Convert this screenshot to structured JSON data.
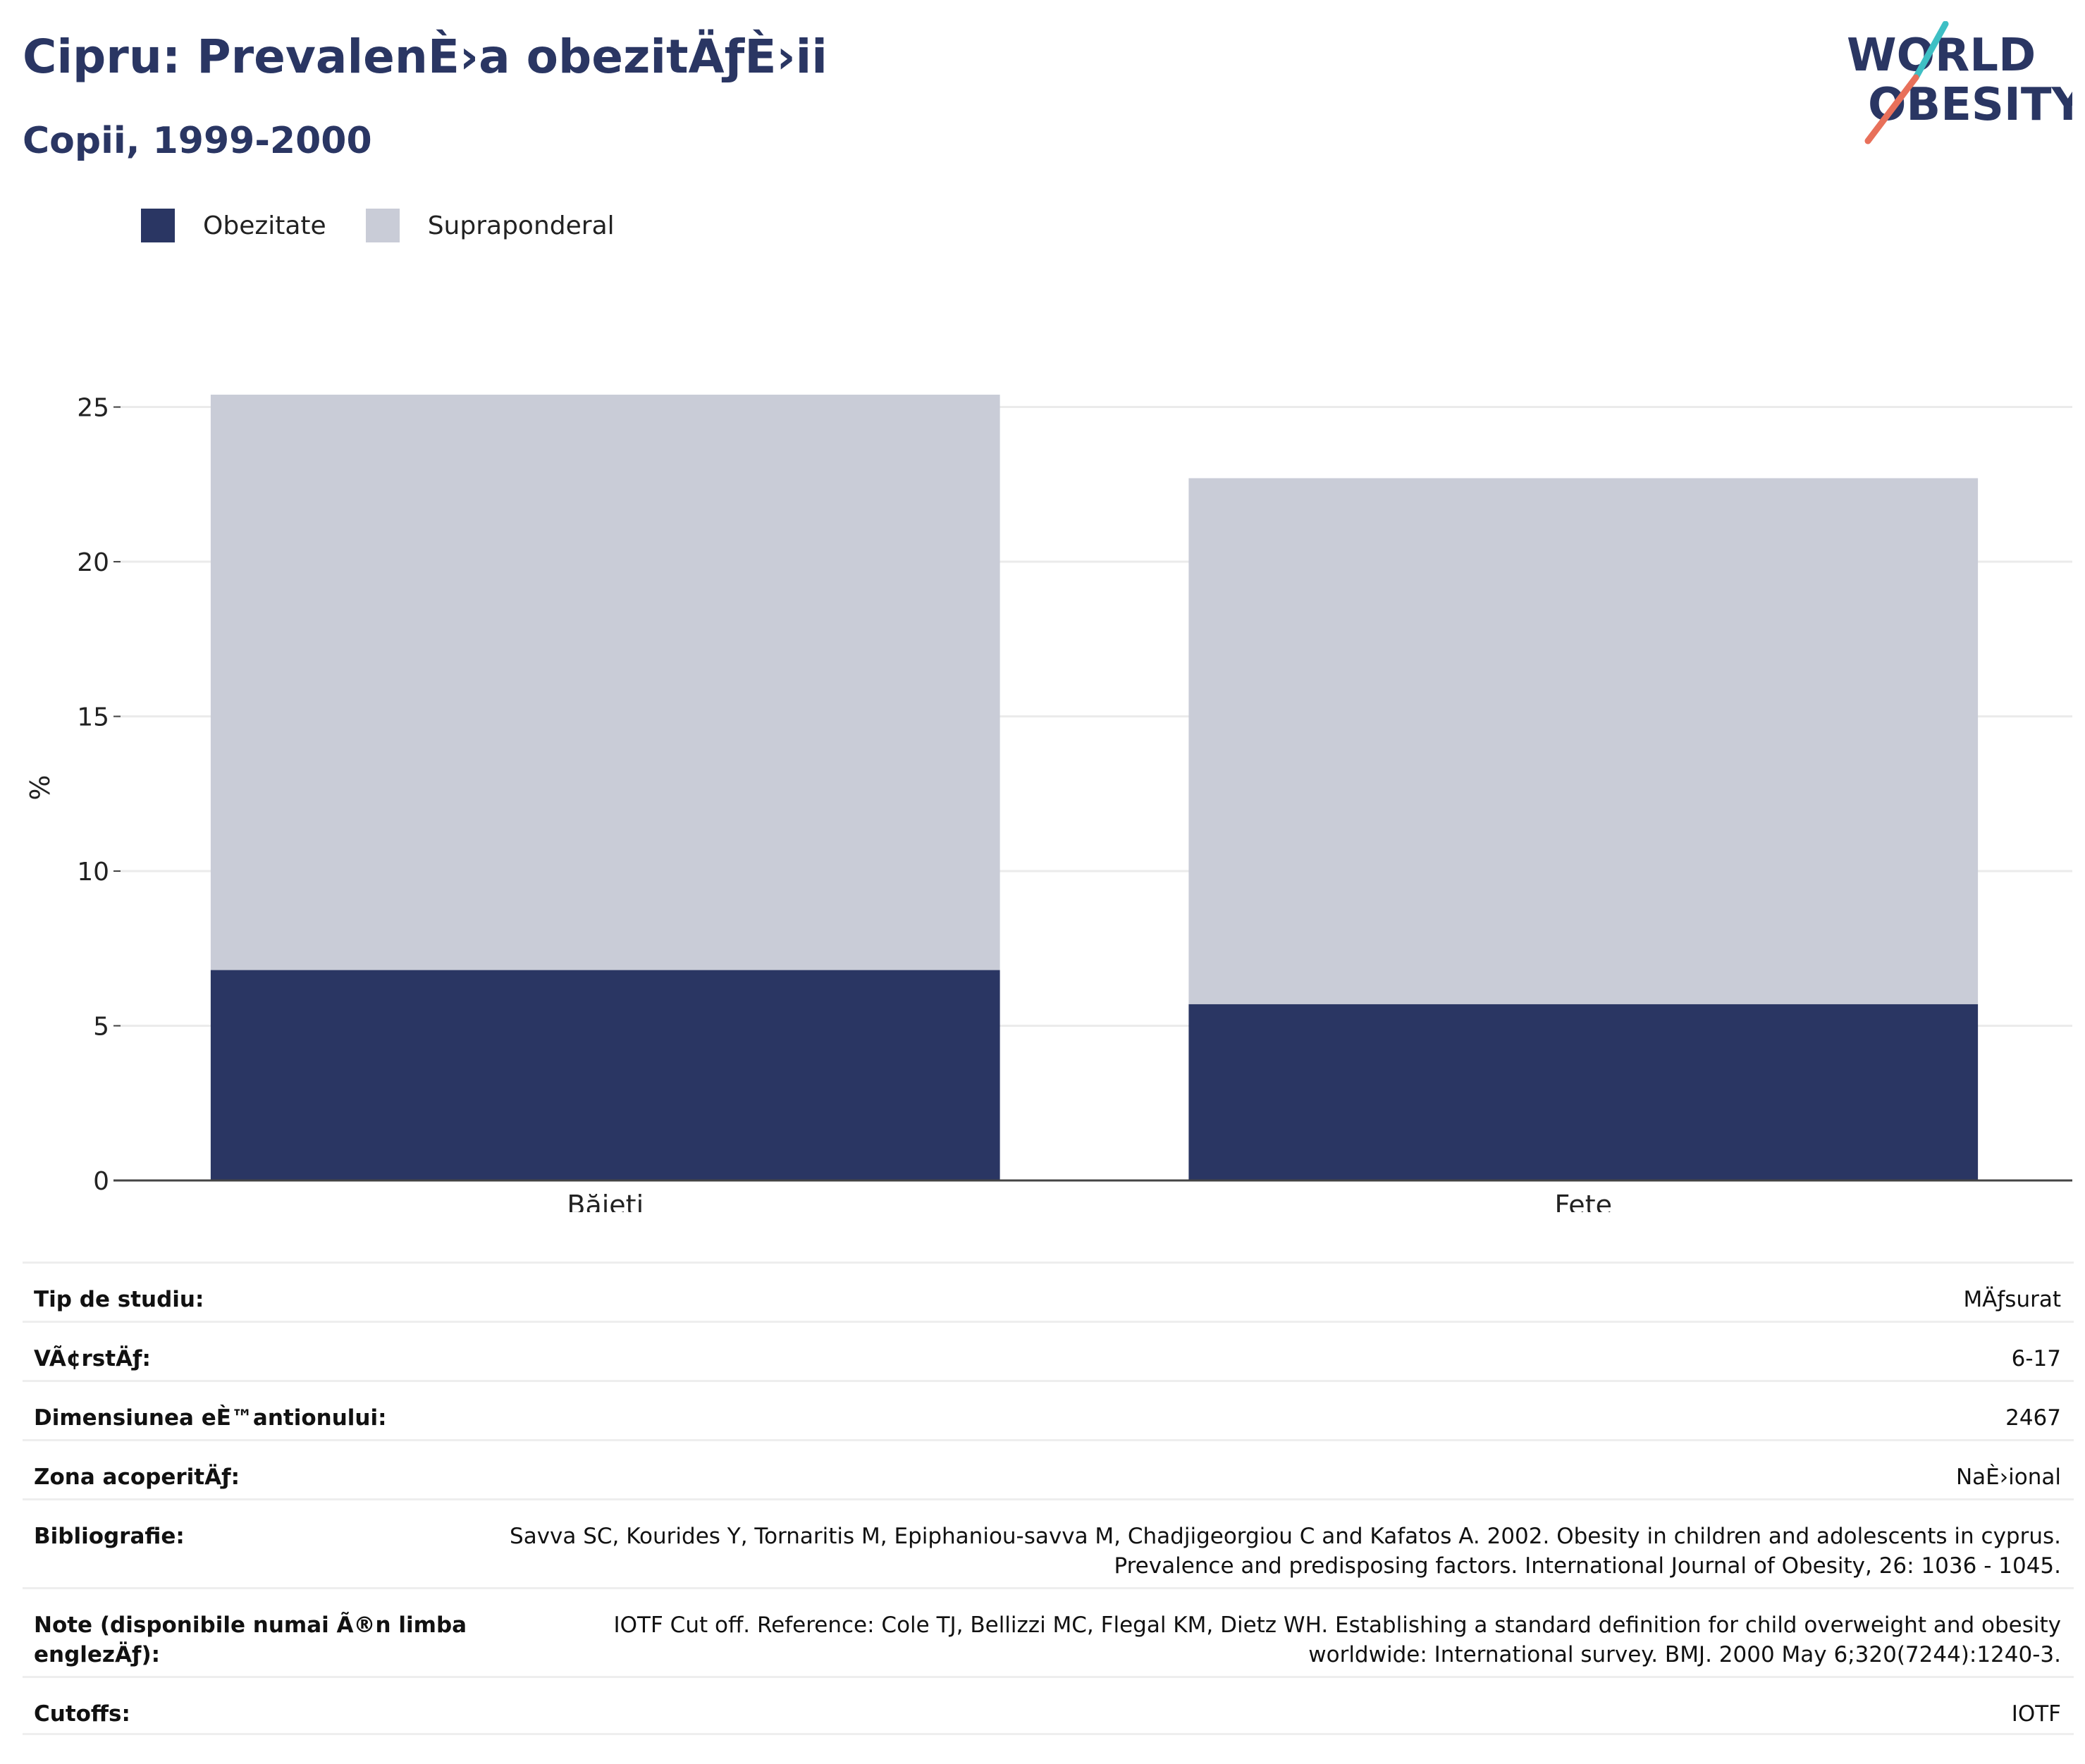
{
  "header": {
    "title": "Cipru: PrevalenÈ›a obezitÄƒÈ›ii",
    "subtitle": "Copii, 1999-2000",
    "logo_line1": "WORLD",
    "logo_line2": "OBESITY"
  },
  "colors": {
    "obesity": "#2a3663",
    "overweight": "#c9ccd7",
    "logo_teal": "#3ebfc4",
    "logo_coral": "#e8705a"
  },
  "chart_data": {
    "type": "bar",
    "stacked": true,
    "categories": [
      "Băieți",
      "Fete"
    ],
    "series": [
      {
        "name": "Obezitate",
        "values": [
          6.8,
          5.7
        ]
      },
      {
        "name": "Supraponderal",
        "values": [
          18.6,
          17.0
        ]
      }
    ],
    "xlabel": "",
    "ylabel": "%",
    "ylim": [
      0,
      25.4
    ],
    "yticks": [
      0,
      5,
      10,
      15,
      20,
      25
    ],
    "grid": true,
    "legend": "top-left"
  },
  "info": [
    {
      "label": "Tip de studiu:",
      "value": "MÄƒsurat"
    },
    {
      "label": "VÃ¢rstÄƒ:",
      "value": "6-17"
    },
    {
      "label": "Dimensiunea eÈ™antionului:",
      "value": "2467"
    },
    {
      "label": "Zona acoperitÄƒ:",
      "value": "NaÈ›ional"
    },
    {
      "label": "Bibliografie:",
      "value": "Savva SC, Kourides Y, Tornaritis M, Epiphaniou-savva M, Chadjigeorgiou C and Kafatos A. 2002. Obesity in children and adolescents in cyprus. Prevalence and predisposing factors. International Journal of Obesity, 26: 1036 - 1045."
    },
    {
      "label": "Note (disponibile numai Ã®n limba englezÄƒ):",
      "value": "IOTF Cut off. Reference: Cole TJ, Bellizzi MC, Flegal KM, Dietz WH. Establishing a standard definition for child overweight and obesity worldwide: International survey. BMJ. 2000 May 6;320(7244):1240-3."
    },
    {
      "label": "Cutoffs:",
      "value": "IOTF"
    }
  ]
}
